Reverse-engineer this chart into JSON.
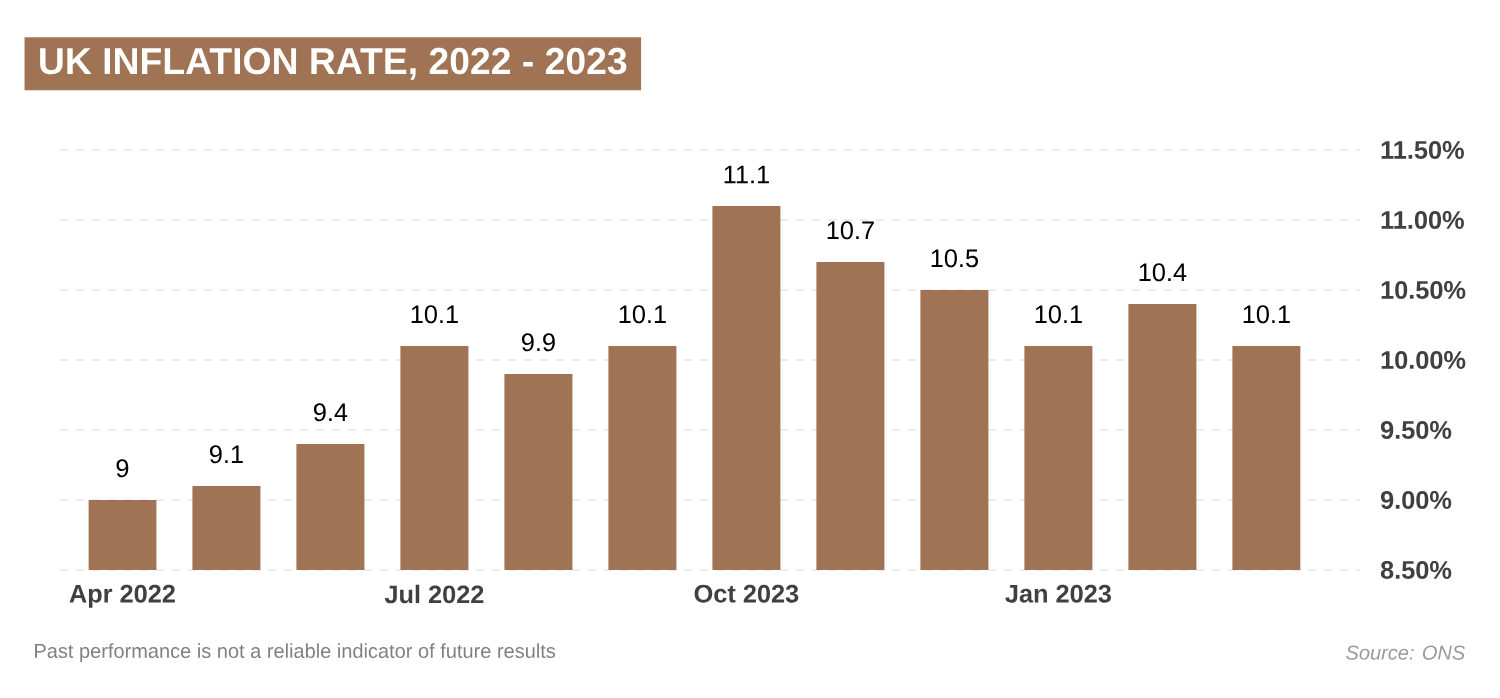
{
  "chart_data": {
    "type": "bar",
    "title": "UK INFLATION RATE, 2022 - 2023",
    "categories": [
      "Apr 2022",
      null,
      null,
      "Jul 2022",
      null,
      null,
      "Oct 2023",
      null,
      null,
      "Jan 2023",
      null,
      null
    ],
    "values": [
      9,
      9.1,
      9.4,
      10.1,
      9.9,
      10.1,
      11.1,
      10.7,
      10.5,
      10.1,
      10.4,
      10.1
    ],
    "color": "#a07355",
    "data_labels": true,
    "grid": "y",
    "ylim": [
      8.5,
      11.5
    ],
    "yticks": [
      {
        "value": 8.5,
        "label": "8.50%"
      },
      {
        "value": 9,
        "label": "9.00%"
      },
      {
        "value": 9.5,
        "label": "9.50%"
      },
      {
        "value": 10,
        "label": "10.00%"
      },
      {
        "value": 10.5,
        "label": "10.50%"
      },
      {
        "value": 11,
        "label": "11.00%"
      },
      {
        "value": 11.5,
        "label": "11.50%"
      }
    ],
    "annotations": [
      "Past performance is not a reliable indicator of future results",
      "Source: ONS"
    ]
  }
}
